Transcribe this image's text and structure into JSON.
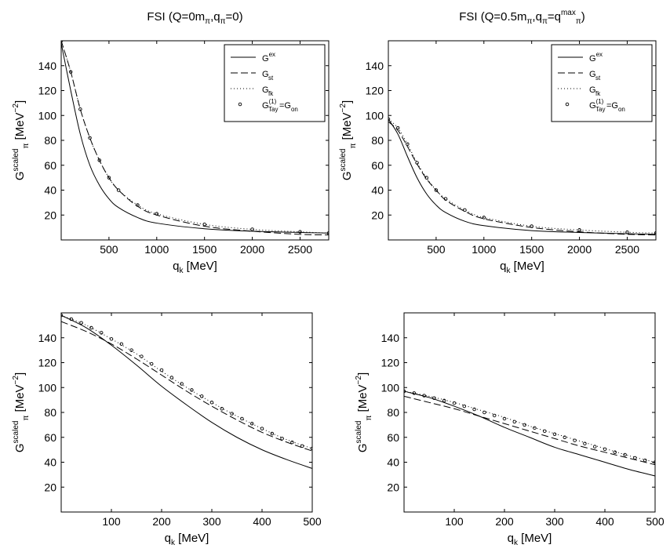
{
  "chart_data": [
    {
      "type": "line",
      "title": "FSI (Q=0m",
      "title_parts": {
        "pi": "π",
        "sep": ",q",
        "end": "=0)",
        "sup": ""
      },
      "xlabel": "q",
      "xlabel_sub": "k",
      "xlabel_unit": "[MeV]",
      "ylabel": "G",
      "ylabel_sup": "scaled",
      "ylabel_sub": "π",
      "ylabel_unit": "[MeV",
      "ylabel_exp": "−2",
      "ylabel_close": "]",
      "xlim": [
        0,
        2800
      ],
      "ylim": [
        0,
        160
      ],
      "xticks": [
        500,
        1000,
        1500,
        2000,
        2500
      ],
      "yticks": [
        20,
        40,
        60,
        80,
        100,
        120,
        140
      ],
      "legend": [
        {
          "base": "G",
          "sup": "ex",
          "sub": ""
        },
        {
          "base": "G",
          "sup": "",
          "sub": "st"
        },
        {
          "base": "G",
          "sup": "",
          "sub": "fk"
        },
        {
          "base": "G",
          "sup": "(1)",
          "sub": "Tay",
          "tail": "=G",
          "tail_sub": "on"
        }
      ],
      "series": [
        {
          "name": "G^ex",
          "style": "solid",
          "x": [
            0,
            100,
            200,
            300,
            400,
            500,
            600,
            800,
            1000,
            1500,
            2000,
            2500,
            2800
          ],
          "values": [
            158,
            120,
            85,
            60,
            44,
            33,
            26,
            18,
            13.5,
            9,
            7,
            6,
            5.5
          ]
        },
        {
          "name": "G_st",
          "style": "dashed",
          "x": [
            0,
            100,
            200,
            300,
            400,
            500,
            600,
            800,
            1000,
            1500,
            2000,
            2500,
            2800
          ],
          "values": [
            160,
            135,
            105,
            82,
            64,
            50,
            40,
            27,
            20,
            11,
            7,
            4.5,
            4
          ]
        },
        {
          "name": "G_fk",
          "style": "dotted",
          "x": [
            0,
            100,
            200,
            300,
            400,
            500,
            600,
            800,
            1000,
            1500,
            2000,
            2500,
            2800
          ],
          "values": [
            160,
            135,
            105,
            82,
            64,
            50,
            40,
            28,
            21,
            12.5,
            8.5,
            6.5,
            5.5
          ]
        },
        {
          "name": "G_Tay^(1)=G_on",
          "style": "circles",
          "x": [
            0,
            100,
            200,
            300,
            400,
            500,
            600,
            800,
            1000,
            1500,
            2000,
            2500,
            2800
          ],
          "values": [
            160,
            135,
            105,
            82,
            64,
            50,
            40,
            28,
            21,
            12.5,
            8.5,
            6.5,
            5.5
          ]
        }
      ]
    },
    {
      "type": "line",
      "title": "FSI (Q=0.5m",
      "title_parts": {
        "pi": "π",
        "sep": ",q",
        "end": ")",
        "eq": "=q",
        "sup": "max"
      },
      "xlabel": "q",
      "xlabel_sub": "k",
      "xlabel_unit": "[MeV]",
      "ylabel": "G",
      "ylabel_sup": "scaled",
      "ylabel_sub": "π",
      "ylabel_unit": "[MeV",
      "ylabel_exp": "−2",
      "ylabel_close": "]",
      "xlim": [
        0,
        2800
      ],
      "ylim": [
        0,
        160
      ],
      "xticks": [
        500,
        1000,
        1500,
        2000,
        2500
      ],
      "yticks": [
        20,
        40,
        60,
        80,
        100,
        120,
        140
      ],
      "legend": [
        {
          "base": "G",
          "sup": "ex",
          "sub": ""
        },
        {
          "base": "G",
          "sup": "",
          "sub": "st"
        },
        {
          "base": "G",
          "sup": "",
          "sub": "fk"
        },
        {
          "base": "G",
          "sup": "(1)",
          "sub": "Tay",
          "tail": "=G",
          "tail_sub": "on"
        }
      ],
      "series": [
        {
          "name": "G^ex",
          "style": "solid",
          "x": [
            0,
            100,
            200,
            300,
            400,
            500,
            600,
            800,
            1000,
            1500,
            2000,
            2500,
            2800
          ],
          "values": [
            97,
            85,
            67,
            50,
            37,
            28,
            22,
            15,
            11.5,
            7.5,
            6,
            5,
            4.5
          ]
        },
        {
          "name": "G_st",
          "style": "dashed",
          "x": [
            0,
            100,
            200,
            300,
            400,
            500,
            600,
            800,
            1000,
            1500,
            2000,
            2500,
            2800
          ],
          "values": [
            95,
            88,
            75,
            61,
            49,
            40,
            32,
            23,
            17,
            10,
            6.5,
            4.5,
            4
          ]
        },
        {
          "name": "G_fk",
          "style": "dotted",
          "x": [
            0,
            100,
            200,
            300,
            400,
            500,
            600,
            800,
            1000,
            1500,
            2000,
            2500,
            2800
          ],
          "values": [
            97,
            90,
            77,
            62,
            50,
            40,
            33,
            24,
            18,
            11,
            8,
            6.2,
            5.5
          ]
        },
        {
          "name": "G_Tay^(1)=G_on",
          "style": "circles",
          "x": [
            0,
            100,
            200,
            300,
            400,
            500,
            600,
            800,
            1000,
            1500,
            2000,
            2500,
            2800
          ],
          "values": [
            97,
            90,
            77,
            62,
            50,
            40,
            33,
            24,
            18,
            11,
            8,
            6.2,
            5.5
          ]
        }
      ]
    },
    {
      "type": "line",
      "xlabel": "q",
      "xlabel_sub": "k",
      "xlabel_unit": "[MeV]",
      "ylabel": "G",
      "ylabel_sup": "scaled",
      "ylabel_sub": "π",
      "ylabel_unit": "[MeV",
      "ylabel_exp": "−2",
      "ylabel_close": "]",
      "xlim": [
        0,
        500
      ],
      "ylim": [
        0,
        160
      ],
      "xticks": [
        100,
        200,
        300,
        400,
        500
      ],
      "yticks": [
        20,
        40,
        60,
        80,
        100,
        120,
        140
      ],
      "series": [
        {
          "name": "G^ex",
          "style": "solid",
          "x": [
            0,
            50,
            100,
            150,
            200,
            250,
            300,
            350,
            400,
            450,
            500
          ],
          "values": [
            158,
            148,
            134,
            118,
            101,
            86,
            72,
            60,
            50,
            42,
            35
          ]
        },
        {
          "name": "G_st",
          "style": "dashed",
          "x": [
            0,
            50,
            100,
            150,
            200,
            250,
            300,
            350,
            400,
            450,
            500
          ],
          "values": [
            153,
            145,
            135,
            123,
            110,
            97,
            85,
            74,
            64,
            56,
            49
          ]
        },
        {
          "name": "G_fk",
          "style": "dotted",
          "x": [
            0,
            50,
            100,
            150,
            200,
            250,
            300,
            350,
            400,
            450,
            500
          ],
          "values": [
            158,
            150,
            139,
            127,
            113,
            100,
            88,
            77,
            67,
            58,
            51
          ]
        },
        {
          "name": "G_Tay^(1)=G_on",
          "style": "circles",
          "x": [
            0,
            20,
            40,
            60,
            80,
            100,
            120,
            140,
            160,
            180,
            200,
            220,
            240,
            260,
            280,
            300,
            320,
            340,
            360,
            380,
            400,
            420,
            440,
            460,
            480,
            500
          ],
          "values": [
            158,
            155,
            152,
            148,
            144,
            139,
            135,
            130,
            125,
            119,
            114,
            108,
            103,
            98,
            93,
            88,
            83,
            79,
            75,
            71,
            67,
            63,
            59,
            56,
            53,
            51
          ]
        }
      ]
    },
    {
      "type": "line",
      "xlabel": "q",
      "xlabel_sub": "k",
      "xlabel_unit": "[MeV]",
      "ylabel": "G",
      "ylabel_sup": "scaled",
      "ylabel_sub": "π",
      "ylabel_unit": "[MeV",
      "ylabel_exp": "−2",
      "ylabel_close": "]",
      "xlim": [
        0,
        500
      ],
      "ylim": [
        0,
        160
      ],
      "xticks": [
        100,
        200,
        300,
        400,
        500
      ],
      "yticks": [
        20,
        40,
        60,
        80,
        100,
        120,
        140
      ],
      "series": [
        {
          "name": "G^ex",
          "style": "solid",
          "x": [
            0,
            50,
            100,
            150,
            200,
            250,
            300,
            350,
            400,
            450,
            500
          ],
          "values": [
            97,
            92,
            85,
            77,
            68,
            60,
            52,
            46,
            40,
            34,
            29
          ]
        },
        {
          "name": "G_st",
          "style": "dashed",
          "x": [
            0,
            50,
            100,
            150,
            200,
            250,
            300,
            350,
            400,
            450,
            500
          ],
          "values": [
            93,
            88,
            83,
            77,
            71,
            65,
            59,
            53,
            48,
            43,
            38
          ]
        },
        {
          "name": "G_fk",
          "style": "dotted",
          "x": [
            0,
            50,
            100,
            150,
            200,
            250,
            300,
            350,
            400,
            450,
            500
          ],
          "values": [
            97,
            93,
            88,
            82,
            76,
            69,
            63,
            57,
            51,
            45,
            40
          ]
        },
        {
          "name": "G_Tay^(1)=G_on",
          "style": "circles",
          "x": [
            0,
            20,
            40,
            60,
            80,
            100,
            120,
            140,
            160,
            180,
            200,
            220,
            240,
            260,
            280,
            300,
            320,
            340,
            360,
            380,
            400,
            420,
            440,
            460,
            480,
            500
          ],
          "values": [
            97,
            95.5,
            93.5,
            91.5,
            89.5,
            87.5,
            85,
            82.5,
            80,
            77.5,
            75,
            72.5,
            70,
            67.5,
            65,
            62.5,
            60,
            57.5,
            55,
            52.5,
            50.5,
            48,
            46,
            43.5,
            41.5,
            40
          ]
        }
      ]
    }
  ]
}
